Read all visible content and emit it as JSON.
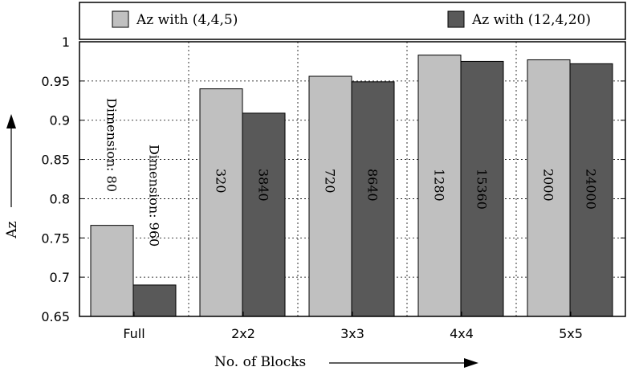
{
  "chart_data": {
    "type": "bar",
    "title": "",
    "xlabel": "No. of Blocks",
    "ylabel": "Az",
    "ylim": [
      0.65,
      1.0
    ],
    "yticks": [
      "0.65",
      "0.7",
      "0.75",
      "0.8",
      "0.85",
      "0.9",
      "0.95",
      "1"
    ],
    "grid": true,
    "legend_placement": "top",
    "categories": [
      "Full",
      "2x2",
      "3x3",
      "4x4",
      "5x5"
    ],
    "series": [
      {
        "name": "Az with (4,4,5)",
        "color": "#c0c0c0",
        "values": [
          0.766,
          0.94,
          0.956,
          0.983,
          0.977
        ],
        "labels": [
          "Dimension: 80",
          "320",
          "720",
          "1280",
          "2000"
        ]
      },
      {
        "name": "Az with (12,4,20)",
        "color": "#595959",
        "values": [
          0.69,
          0.909,
          0.949,
          0.975,
          0.972
        ],
        "labels": [
          "Dimension: 960",
          "3840",
          "8640",
          "15360",
          "24000"
        ]
      }
    ]
  }
}
